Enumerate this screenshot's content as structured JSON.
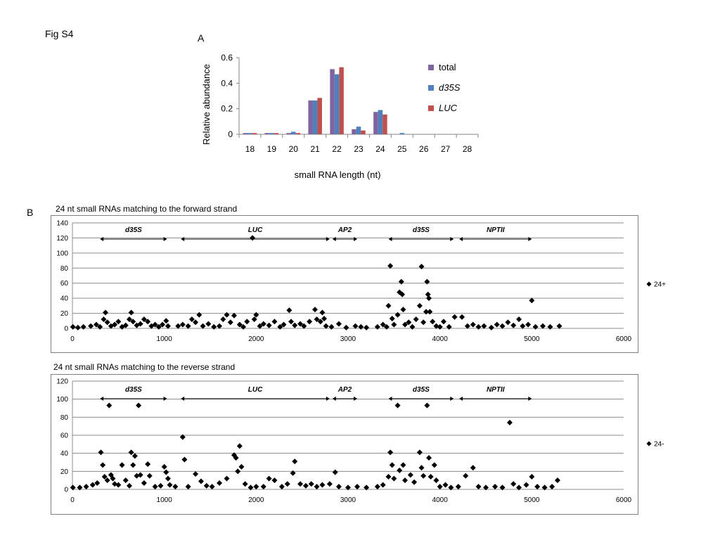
{
  "figure": {
    "label": "Fig S4"
  },
  "chart_data": [
    {
      "id": "A",
      "panel_label": "A",
      "type": "bar",
      "title": "",
      "xlabel": "small RNA length  (nt)",
      "ylabel": "Relative abundance",
      "ylim": [
        0,
        0.6
      ],
      "yticks": [
        "0",
        "0.2",
        "0.4",
        "0.6"
      ],
      "grid": false,
      "legend_position": "right",
      "categories": [
        "18",
        "19",
        "20",
        "21",
        "22",
        "23",
        "24",
        "25",
        "26",
        "27",
        "28"
      ],
      "series": [
        {
          "name": "total",
          "italic": false,
          "color": "#8064a2",
          "values": [
            0.01,
            0.01,
            0.01,
            0.265,
            0.51,
            0.04,
            0.175,
            0.0,
            0.0,
            0.0,
            0.0
          ]
        },
        {
          "name": "d35S",
          "italic": true,
          "color": "#4f81bd",
          "values": [
            0.01,
            0.01,
            0.02,
            0.265,
            0.47,
            0.06,
            0.19,
            0.01,
            0.0,
            0.0,
            0.0
          ]
        },
        {
          "name": "LUC",
          "italic": true,
          "color": "#c0504d",
          "values": [
            0.01,
            0.01,
            0.01,
            0.285,
            0.525,
            0.03,
            0.155,
            0.0,
            0.0,
            0.0,
            0.0
          ]
        }
      ]
    },
    {
      "id": "B1",
      "panel_label": "B",
      "type": "scatter",
      "title": "24 nt small RNAs matching to the forward strand",
      "xlim": [
        0,
        6000
      ],
      "ylim": [
        0,
        140
      ],
      "xticks": [
        "0",
        "1000",
        "2000",
        "3000",
        "4000",
        "5000",
        "6000"
      ],
      "yticks": [
        "0",
        "20",
        "40",
        "60",
        "80",
        "100",
        "120",
        "140"
      ],
      "grid": true,
      "legend_position": "right",
      "series": [
        {
          "name": "24+",
          "marker": "diamond",
          "color": "#000000",
          "points": [
            [
              5,
              2
            ],
            [
              60,
              1
            ],
            [
              120,
              2
            ],
            [
              200,
              3
            ],
            [
              260,
              5
            ],
            [
              300,
              2
            ],
            [
              340,
              12
            ],
            [
              360,
              21
            ],
            [
              380,
              8
            ],
            [
              420,
              3
            ],
            [
              460,
              5
            ],
            [
              500,
              9
            ],
            [
              540,
              2
            ],
            [
              580,
              4
            ],
            [
              620,
              12
            ],
            [
              640,
              21
            ],
            [
              660,
              9
            ],
            [
              700,
              4
            ],
            [
              740,
              6
            ],
            [
              780,
              12
            ],
            [
              820,
              9
            ],
            [
              860,
              3
            ],
            [
              900,
              5
            ],
            [
              940,
              2
            ],
            [
              980,
              5
            ],
            [
              1020,
              10
            ],
            [
              1040,
              3
            ],
            [
              1150,
              3
            ],
            [
              1200,
              5
            ],
            [
              1260,
              3
            ],
            [
              1300,
              12
            ],
            [
              1340,
              8
            ],
            [
              1380,
              18
            ],
            [
              1420,
              3
            ],
            [
              1480,
              6
            ],
            [
              1540,
              2
            ],
            [
              1600,
              3
            ],
            [
              1640,
              12
            ],
            [
              1680,
              18
            ],
            [
              1720,
              8
            ],
            [
              1760,
              17
            ],
            [
              1820,
              5
            ],
            [
              1860,
              2
            ],
            [
              1900,
              9
            ],
            [
              1960,
              120
            ],
            [
              1980,
              12
            ],
            [
              2000,
              18
            ],
            [
              2040,
              3
            ],
            [
              2080,
              6
            ],
            [
              2140,
              4
            ],
            [
              2200,
              9
            ],
            [
              2260,
              2
            ],
            [
              2300,
              5
            ],
            [
              2360,
              24
            ],
            [
              2380,
              9
            ],
            [
              2420,
              4
            ],
            [
              2480,
              6
            ],
            [
              2520,
              3
            ],
            [
              2580,
              9
            ],
            [
              2640,
              25
            ],
            [
              2660,
              12
            ],
            [
              2700,
              9
            ],
            [
              2720,
              21
            ],
            [
              2740,
              13
            ],
            [
              2760,
              3
            ],
            [
              2820,
              2
            ],
            [
              2900,
              6
            ],
            [
              2980,
              1
            ],
            [
              3080,
              3
            ],
            [
              3140,
              2
            ],
            [
              3200,
              1
            ],
            [
              3320,
              2
            ],
            [
              3380,
              5
            ],
            [
              3420,
              2
            ],
            [
              3440,
              30
            ],
            [
              3460,
              83
            ],
            [
              3480,
              13
            ],
            [
              3500,
              5
            ],
            [
              3540,
              18
            ],
            [
              3560,
              48
            ],
            [
              3580,
              62
            ],
            [
              3590,
              45
            ],
            [
              3600,
              25
            ],
            [
              3620,
              5
            ],
            [
              3660,
              8
            ],
            [
              3700,
              2
            ],
            [
              3740,
              12
            ],
            [
              3780,
              30
            ],
            [
              3800,
              82
            ],
            [
              3820,
              8
            ],
            [
              3850,
              22
            ],
            [
              3860,
              62
            ],
            [
              3870,
              45
            ],
            [
              3880,
              40
            ],
            [
              3890,
              22
            ],
            [
              3920,
              9
            ],
            [
              3960,
              3
            ],
            [
              4000,
              2
            ],
            [
              4040,
              9
            ],
            [
              4100,
              2
            ],
            [
              4160,
              15
            ],
            [
              4240,
              15
            ],
            [
              4300,
              3
            ],
            [
              4360,
              5
            ],
            [
              4420,
              2
            ],
            [
              4480,
              3
            ],
            [
              4560,
              1
            ],
            [
              4620,
              5
            ],
            [
              4680,
              3
            ],
            [
              4740,
              8
            ],
            [
              4800,
              4
            ],
            [
              4860,
              12
            ],
            [
              4900,
              3
            ],
            [
              4960,
              5
            ],
            [
              5000,
              37
            ],
            [
              5040,
              2
            ],
            [
              5120,
              3
            ],
            [
              5200,
              2
            ],
            [
              5300,
              3
            ]
          ]
        }
      ],
      "annotations": [
        {
          "label": "d35S",
          "from": 300,
          "to": 1030
        },
        {
          "label": "LUC",
          "from": 1180,
          "to": 2800
        },
        {
          "label": "AP2",
          "from": 2830,
          "to": 3100
        },
        {
          "label": "d35S",
          "from": 3440,
          "to": 4150
        },
        {
          "label": "NPTII",
          "from": 4210,
          "to": 5000
        }
      ]
    },
    {
      "id": "B2",
      "panel_label": "",
      "type": "scatter",
      "title": "24 nt small RNAs matching to the reverse strand",
      "xlim": [
        0,
        6000
      ],
      "ylim": [
        0,
        120
      ],
      "xticks": [
        "0",
        "1000",
        "2000",
        "3000",
        "4000",
        "5000",
        "6000"
      ],
      "yticks": [
        "0",
        "20",
        "40",
        "60",
        "80",
        "100",
        "120"
      ],
      "grid": true,
      "legend_position": "right",
      "series": [
        {
          "name": "24-",
          "marker": "diamond",
          "color": "#000000",
          "points": [
            [
              5,
              2
            ],
            [
              80,
              2
            ],
            [
              150,
              3
            ],
            [
              220,
              5
            ],
            [
              270,
              7
            ],
            [
              310,
              41
            ],
            [
              330,
              27
            ],
            [
              350,
              14
            ],
            [
              380,
              10
            ],
            [
              400,
              93
            ],
            [
              420,
              16
            ],
            [
              440,
              12
            ],
            [
              460,
              6
            ],
            [
              500,
              5
            ],
            [
              540,
              27
            ],
            [
              580,
              10
            ],
            [
              620,
              4
            ],
            [
              640,
              41
            ],
            [
              660,
              27
            ],
            [
              680,
              37
            ],
            [
              700,
              15
            ],
            [
              720,
              93
            ],
            [
              740,
              16
            ],
            [
              780,
              7
            ],
            [
              820,
              28
            ],
            [
              840,
              15
            ],
            [
              900,
              3
            ],
            [
              960,
              4
            ],
            [
              1000,
              25
            ],
            [
              1020,
              19
            ],
            [
              1040,
              12
            ],
            [
              1060,
              5
            ],
            [
              1120,
              3
            ],
            [
              1200,
              58
            ],
            [
              1220,
              33
            ],
            [
              1260,
              3
            ],
            [
              1340,
              17
            ],
            [
              1400,
              9
            ],
            [
              1460,
              4
            ],
            [
              1520,
              3
            ],
            [
              1600,
              7
            ],
            [
              1680,
              12
            ],
            [
              1760,
              38
            ],
            [
              1780,
              35
            ],
            [
              1800,
              20
            ],
            [
              1820,
              48
            ],
            [
              1840,
              25
            ],
            [
              1880,
              6
            ],
            [
              1940,
              2
            ],
            [
              2000,
              3
            ],
            [
              2080,
              3
            ],
            [
              2140,
              12
            ],
            [
              2200,
              10
            ],
            [
              2280,
              3
            ],
            [
              2340,
              6
            ],
            [
              2400,
              18
            ],
            [
              2420,
              31
            ],
            [
              2480,
              6
            ],
            [
              2540,
              4
            ],
            [
              2600,
              6
            ],
            [
              2660,
              3
            ],
            [
              2720,
              5
            ],
            [
              2800,
              6
            ],
            [
              2860,
              19
            ],
            [
              2900,
              3
            ],
            [
              3000,
              2
            ],
            [
              3100,
              3
            ],
            [
              3200,
              2
            ],
            [
              3320,
              3
            ],
            [
              3380,
              5
            ],
            [
              3440,
              14
            ],
            [
              3460,
              41
            ],
            [
              3480,
              27
            ],
            [
              3500,
              12
            ],
            [
              3540,
              93
            ],
            [
              3560,
              21
            ],
            [
              3600,
              27
            ],
            [
              3620,
              10
            ],
            [
              3680,
              16
            ],
            [
              3720,
              8
            ],
            [
              3780,
              41
            ],
            [
              3800,
              24
            ],
            [
              3820,
              15
            ],
            [
              3860,
              93
            ],
            [
              3880,
              35
            ],
            [
              3900,
              14
            ],
            [
              3940,
              27
            ],
            [
              3960,
              10
            ],
            [
              4000,
              3
            ],
            [
              4060,
              5
            ],
            [
              4120,
              2
            ],
            [
              4200,
              3
            ],
            [
              4280,
              15
            ],
            [
              4360,
              24
            ],
            [
              4420,
              3
            ],
            [
              4500,
              2
            ],
            [
              4600,
              3
            ],
            [
              4680,
              2
            ],
            [
              4760,
              74
            ],
            [
              4800,
              6
            ],
            [
              4860,
              2
            ],
            [
              4940,
              5
            ],
            [
              5000,
              14
            ],
            [
              5060,
              3
            ],
            [
              5140,
              2
            ],
            [
              5220,
              3
            ],
            [
              5280,
              10
            ]
          ]
        }
      ],
      "annotations": [
        {
          "label": "d35S",
          "from": 300,
          "to": 1030
        },
        {
          "label": "LUC",
          "from": 1180,
          "to": 2800
        },
        {
          "label": "AP2",
          "from": 2830,
          "to": 3100
        },
        {
          "label": "d35S",
          "from": 3440,
          "to": 4150
        },
        {
          "label": "NPTII",
          "from": 4210,
          "to": 5000
        }
      ]
    }
  ]
}
